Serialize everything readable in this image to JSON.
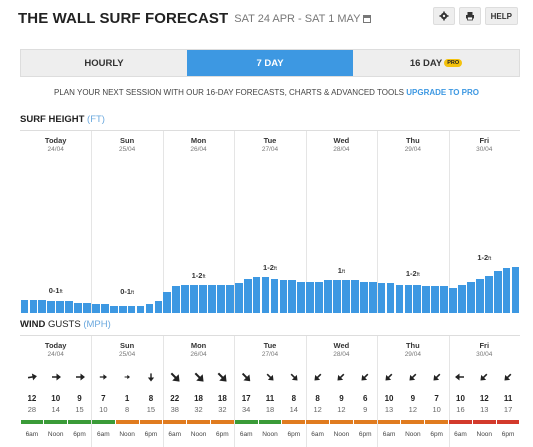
{
  "header": {
    "title": "THE WALL SURF FORECAST",
    "dates": "SAT 24 APR - SAT 1 MAY",
    "help": "HELP"
  },
  "tabs": [
    {
      "label": "HOURLY",
      "active": false
    },
    {
      "label": "7 DAY",
      "active": true
    },
    {
      "label": "16 DAY",
      "active": false,
      "badge": "PRO"
    }
  ],
  "promo": {
    "text": "PLAN YOUR NEXT SESSION WITH OUR 16-DAY FORECASTS, CHARTS & ADVANCED TOOLS",
    "link": "UPGRADE TO PRO"
  },
  "surf": {
    "label": "SURF HEIGHT",
    "unit": "(FT)",
    "days": [
      {
        "day": "Today",
        "date": "24/04",
        "label": "0-1",
        "unit": "ft",
        "levels": [
          0.09,
          0.09,
          0.09,
          0.08,
          0.08,
          0.08,
          0.07,
          0.07
        ]
      },
      {
        "day": "Sun",
        "date": "25/04",
        "label": "0-1",
        "unit": "ft",
        "levels": [
          0.06,
          0.06,
          0.05,
          0.05,
          0.05,
          0.05,
          0.06,
          0.08
        ]
      },
      {
        "day": "Mon",
        "date": "26/04",
        "label": "1-2",
        "unit": "ft",
        "levels": [
          0.14,
          0.18,
          0.19,
          0.19,
          0.19,
          0.19,
          0.19,
          0.19
        ]
      },
      {
        "day": "Tue",
        "date": "27/04",
        "label": "1-2",
        "unit": "ft",
        "levels": [
          0.2,
          0.23,
          0.24,
          0.24,
          0.23,
          0.22,
          0.22,
          0.21
        ]
      },
      {
        "day": "Wed",
        "date": "28/04",
        "label": "1",
        "unit": "ft",
        "levels": [
          0.21,
          0.21,
          0.22,
          0.22,
          0.22,
          0.22,
          0.21,
          0.21
        ]
      },
      {
        "day": "Thu",
        "date": "29/04",
        "label": "1-2",
        "unit": "ft",
        "levels": [
          0.2,
          0.2,
          0.19,
          0.19,
          0.19,
          0.18,
          0.18,
          0.18
        ]
      },
      {
        "day": "Fri",
        "date": "30/04",
        "label": "1-2",
        "unit": "ft",
        "levels": [
          0.17,
          0.19,
          0.21,
          0.23,
          0.25,
          0.28,
          0.3,
          0.31
        ]
      }
    ]
  },
  "wind": {
    "label": "WIND",
    "gust_label": "GUSTS",
    "unit": "(MPH)",
    "days": [
      {
        "day": "Today",
        "date": "24/04",
        "rotations": [
          80,
          90,
          90
        ],
        "sizes": [
          1,
          1,
          1
        ],
        "speeds": [
          "12",
          "10",
          "9"
        ],
        "gusts": [
          "28",
          "14",
          "15"
        ],
        "times": [
          "6am",
          "Noon",
          "6pm"
        ],
        "ratings": [
          "#3a9b38",
          "#3a9b38",
          "#3a9b38"
        ]
      },
      {
        "day": "Sun",
        "date": "25/04",
        "rotations": [
          90,
          90,
          180
        ],
        "sizes": [
          0.8,
          0.6,
          0.9
        ],
        "speeds": [
          "7",
          "1",
          "8"
        ],
        "gusts": [
          "10",
          "8",
          "15"
        ],
        "times": [
          "6am",
          "Noon",
          "6pm"
        ],
        "ratings": [
          "#3a9b38",
          "#e07b1f",
          "#e07b1f"
        ]
      },
      {
        "day": "Mon",
        "date": "26/04",
        "rotations": [
          135,
          135,
          135
        ],
        "sizes": [
          1.3,
          1.3,
          1.3
        ],
        "speeds": [
          "22",
          "18",
          "18"
        ],
        "gusts": [
          "38",
          "32",
          "32"
        ],
        "times": [
          "6am",
          "Noon",
          "6pm"
        ],
        "ratings": [
          "#e07b1f",
          "#e07b1f",
          "#e07b1f"
        ]
      },
      {
        "day": "Tue",
        "date": "27/04",
        "rotations": [
          135,
          135,
          135
        ],
        "sizes": [
          1.2,
          1,
          1
        ],
        "speeds": [
          "17",
          "11",
          "8"
        ],
        "gusts": [
          "34",
          "18",
          "14"
        ],
        "times": [
          "6am",
          "Noon",
          "6pm"
        ],
        "ratings": [
          "#3a9b38",
          "#3a9b38",
          "#e07b1f"
        ]
      },
      {
        "day": "Wed",
        "date": "28/04",
        "rotations": [
          225,
          225,
          225
        ],
        "sizes": [
          1,
          1,
          1
        ],
        "speeds": [
          "8",
          "9",
          "6"
        ],
        "gusts": [
          "12",
          "12",
          "9"
        ],
        "times": [
          "6am",
          "Noon",
          "6pm"
        ],
        "ratings": [
          "#e07b1f",
          "#e07b1f",
          "#e07b1f"
        ]
      },
      {
        "day": "Thu",
        "date": "29/04",
        "rotations": [
          225,
          225,
          225
        ],
        "sizes": [
          1,
          1,
          1
        ],
        "speeds": [
          "10",
          "9",
          "7"
        ],
        "gusts": [
          "13",
          "12",
          "10"
        ],
        "times": [
          "6am",
          "Noon",
          "6pm"
        ],
        "ratings": [
          "#e07b1f",
          "#e07b1f",
          "#e07b1f"
        ]
      },
      {
        "day": "Fri",
        "date": "30/04",
        "rotations": [
          270,
          225,
          225
        ],
        "sizes": [
          1,
          1,
          1
        ],
        "speeds": [
          "10",
          "12",
          "11"
        ],
        "gusts": [
          "16",
          "13",
          "17"
        ],
        "times": [
          "6am",
          "Noon",
          "6pm"
        ],
        "ratings": [
          "#d33a2c",
          "#d33a2c",
          "#d33a2c"
        ]
      }
    ]
  },
  "icons": {
    "settings": "gear-icon",
    "print": "print-icon",
    "calendar": "calendar-icon"
  },
  "colors": {
    "accent": "#3d98e2",
    "bar": "#3d98e2",
    "good": "#3a9b38",
    "fair": "#e07b1f",
    "poor": "#d33a2c"
  }
}
